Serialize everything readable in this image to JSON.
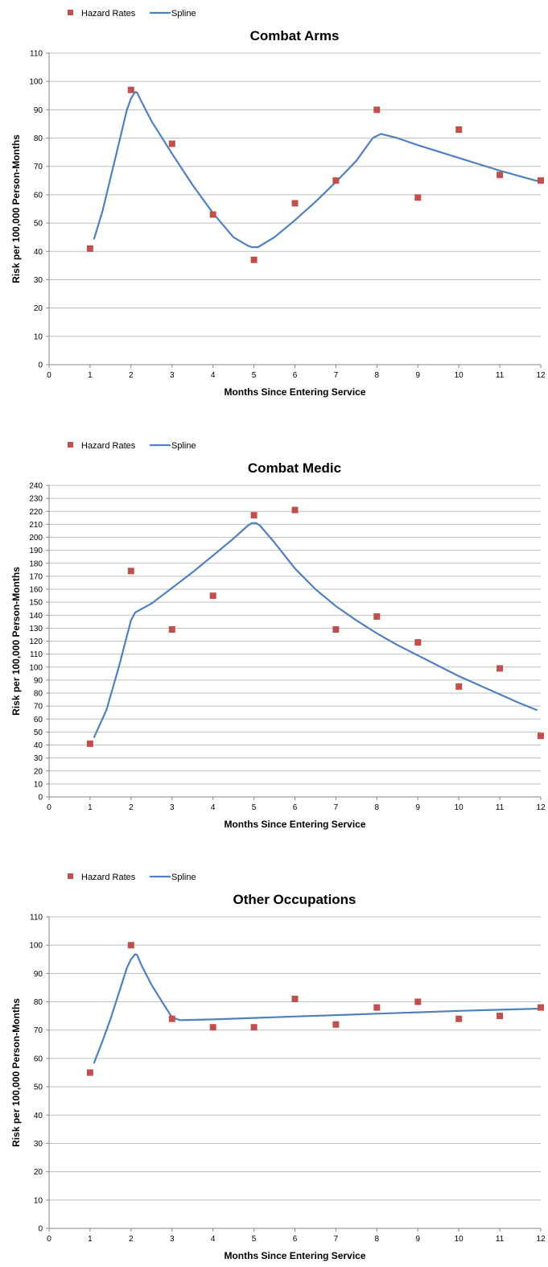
{
  "legend": {
    "hazard_label": "Hazard Rates",
    "spline_label": "Spline"
  },
  "colors": {
    "hazard": "#c0504d",
    "spline": "#4f81bd",
    "grid": "#bfbfbf",
    "axis": "#868686"
  },
  "chart_data": [
    {
      "type": "scatter",
      "title": "Combat Arms",
      "xlabel": "Months Since Entering Service",
      "ylabel": "Risk per 100,000 Person-Months",
      "xlim": [
        0,
        12
      ],
      "ylim": [
        0,
        110
      ],
      "ytick_step": 10,
      "grid": true,
      "legend_position": "top-left",
      "series": [
        {
          "name": "Hazard Rates",
          "kind": "points",
          "x": [
            1,
            2,
            3,
            4,
            5,
            6,
            7,
            8,
            9,
            10,
            11,
            12
          ],
          "y": [
            41,
            97,
            78,
            53,
            37,
            57,
            65,
            90,
            59,
            83,
            67,
            65
          ]
        },
        {
          "name": "Spline",
          "kind": "line",
          "x": [
            1.1,
            1.3,
            1.5,
            1.7,
            1.9,
            2.0,
            2.1,
            2.15,
            2.25,
            2.5,
            3.0,
            3.5,
            4.0,
            4.5,
            4.85,
            4.95,
            5.1,
            5.5,
            6.0,
            6.5,
            7.0,
            7.5,
            7.9,
            8.1,
            8.5,
            9.0,
            10.0,
            11.0,
            12.0
          ],
          "y": [
            44.5,
            54,
            66,
            78,
            90,
            94,
            96.3,
            96,
            93,
            86,
            74.5,
            63.5,
            53.5,
            45,
            42,
            41.5,
            41.5,
            45,
            51,
            57.5,
            64.5,
            72,
            80,
            81.5,
            80,
            77.5,
            73,
            68.5,
            64.5
          ]
        }
      ]
    },
    {
      "type": "scatter",
      "title": "Combat Medic",
      "xlabel": "Months Since Entering Service",
      "ylabel": "Risk per 100,000 Person-Months",
      "xlim": [
        0,
        12
      ],
      "ylim": [
        0,
        240
      ],
      "ytick_step": 10,
      "grid": true,
      "legend_position": "top-left",
      "series": [
        {
          "name": "Hazard Rates",
          "kind": "points",
          "x": [
            1,
            2,
            3,
            4,
            5,
            6,
            7,
            8,
            9,
            10,
            11,
            12
          ],
          "y": [
            41,
            174,
            129,
            155,
            217,
            221,
            129,
            139,
            119,
            85,
            99,
            47
          ]
        },
        {
          "name": "Spline",
          "kind": "line",
          "x": [
            1.1,
            1.4,
            1.7,
            1.9,
            2.0,
            2.1,
            2.5,
            3.0,
            3.5,
            4.0,
            4.5,
            4.85,
            4.95,
            5.05,
            5.15,
            5.5,
            6.0,
            6.5,
            7.0,
            7.5,
            8.0,
            8.5,
            9.0,
            9.5,
            10.0,
            10.5,
            11.0,
            11.5,
            11.9
          ],
          "y": [
            46,
            67,
            100,
            124,
            136,
            142,
            149,
            161,
            173,
            186,
            199,
            209,
            211,
            211,
            209,
            196,
            176,
            160,
            147,
            136,
            126,
            117,
            109,
            101,
            93,
            86,
            79,
            72,
            67
          ]
        }
      ]
    },
    {
      "type": "scatter",
      "title": "Other Occupations",
      "xlabel": "Months Since Entering Service",
      "ylabel": "Risk per 100,000 Person-Months",
      "xlim": [
        0,
        12
      ],
      "ylim": [
        0,
        110
      ],
      "ytick_step": 10,
      "grid": true,
      "legend_position": "top-left",
      "series": [
        {
          "name": "Hazard Rates",
          "kind": "points",
          "x": [
            1,
            2,
            3,
            4,
            5,
            6,
            7,
            8,
            9,
            10,
            11,
            12
          ],
          "y": [
            55,
            100,
            74,
            71,
            71,
            81,
            72,
            78,
            80,
            74,
            75,
            78
          ]
        },
        {
          "name": "Spline",
          "kind": "line",
          "x": [
            1.1,
            1.3,
            1.5,
            1.7,
            1.9,
            2.0,
            2.1,
            2.15,
            2.25,
            2.5,
            2.8,
            3.0,
            3.2,
            4.0,
            5.0,
            6.0,
            7.0,
            8.0,
            9.0,
            10.0,
            11.0,
            12.0
          ],
          "y": [
            58.5,
            66,
            74,
            83,
            92,
            95,
            96.8,
            96.5,
            93,
            86,
            79,
            74.5,
            73.5,
            73.8,
            74.3,
            74.8,
            75.3,
            75.8,
            76.3,
            76.8,
            77.2,
            77.6
          ]
        }
      ]
    }
  ]
}
